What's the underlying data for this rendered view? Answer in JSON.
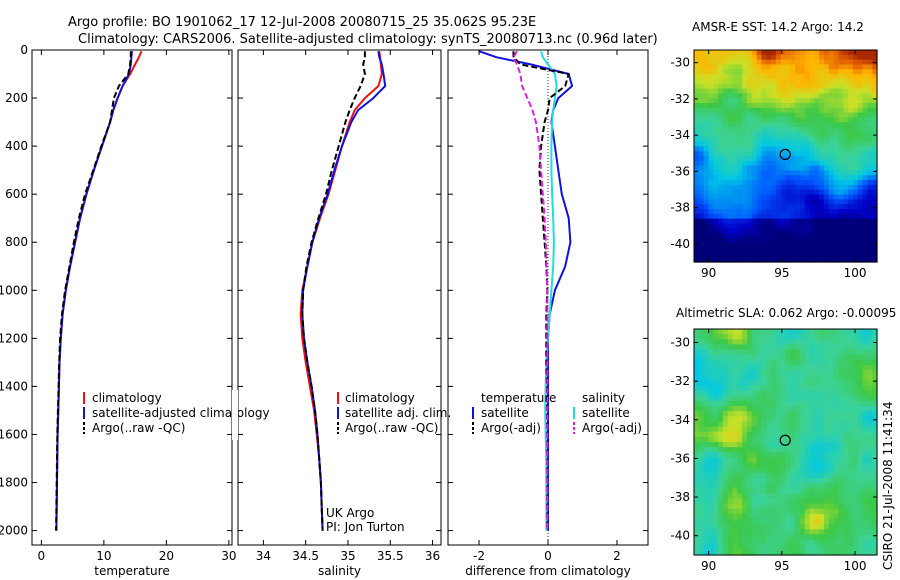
{
  "header": {
    "line1": "Argo profile: BO 1901062_17 12-Jul-2008 20080715_25 35.062S 95.23E",
    "line2": "Climatology: CARS2006. Satellite-adjusted climatology: synTS_20080713.nc (0.96d later)"
  },
  "side_stamp": "CSIRO 21-Jul-2008 11:41:34",
  "credits": {
    "line1": "UK Argo",
    "line2": "PI: Jon Turton"
  },
  "colors": {
    "red": "#ee1111",
    "blue": "#1111dd",
    "black": "#000000",
    "cyan": "#22dddd",
    "magenta": "#dd22dd"
  },
  "chart_data": [
    {
      "type": "line",
      "name": "temperature-panel",
      "xlabel": "temperature",
      "xlim": [
        -1.5,
        30.5
      ],
      "xticks": [
        0,
        10,
        20,
        30
      ],
      "xtick_labels": [
        "0",
        "10",
        "20",
        "30"
      ],
      "ylim": [
        2060,
        0
      ],
      "yticks": [
        0,
        200,
        400,
        600,
        800,
        1000,
        1200,
        1400,
        1600,
        1800,
        2000
      ],
      "ytick_labels": [
        "0",
        "200",
        "400",
        "600",
        "800",
        "1000",
        "1200",
        "1400",
        "1600",
        "1800",
        "2000"
      ],
      "depth": [
        5,
        30,
        60,
        100,
        150,
        200,
        250,
        300,
        400,
        500,
        600,
        700,
        800,
        900,
        1000,
        1100,
        1200,
        1300,
        1400,
        1500,
        1600,
        1700,
        1800,
        1900,
        2000
      ],
      "series": [
        {
          "name": "climatology",
          "color": "red",
          "dash": "",
          "values": [
            16.0,
            15.6,
            15.0,
            14.2,
            13.0,
            12.2,
            11.5,
            11.0,
            9.7,
            8.4,
            7.2,
            6.2,
            5.4,
            4.6,
            3.9,
            3.4,
            3.1,
            2.9,
            2.8,
            2.7,
            2.6,
            2.55,
            2.5,
            2.45,
            2.4
          ]
        },
        {
          "name": "satellite-adjusted climatology",
          "color": "blue",
          "dash": "",
          "values": [
            14.5,
            14.4,
            14.3,
            14.0,
            13.0,
            12.2,
            11.5,
            11.0,
            9.7,
            8.4,
            7.2,
            6.2,
            5.4,
            4.6,
            3.9,
            3.4,
            3.1,
            2.9,
            2.8,
            2.7,
            2.6,
            2.55,
            2.5,
            2.45,
            2.4
          ]
        },
        {
          "name": "Argo(..raw -QC)",
          "color": "black",
          "dash": "6,3",
          "values": [
            14.3,
            14.3,
            14.2,
            13.9,
            12.4,
            11.6,
            11.3,
            11.0,
            9.6,
            8.3,
            7.0,
            6.0,
            5.2,
            4.5,
            3.8,
            3.3,
            3.0,
            2.85,
            2.75,
            2.65,
            2.55,
            2.5,
            2.45,
            2.4,
            2.35
          ]
        }
      ],
      "legend": [
        "climatology",
        "satellite-adjusted climatology",
        "Argo(..raw -QC)"
      ]
    },
    {
      "type": "line",
      "name": "salinity-panel",
      "xlabel": "salinity",
      "xlim": [
        33.7,
        36.1
      ],
      "xticks": [
        34,
        34.5,
        35,
        35.5,
        36
      ],
      "xtick_labels": [
        "34",
        "34.5",
        "35",
        "35.5",
        "36"
      ],
      "ylim": [
        2060,
        0
      ],
      "depth": [
        5,
        30,
        60,
        100,
        150,
        200,
        250,
        300,
        400,
        500,
        600,
        700,
        800,
        900,
        1000,
        1100,
        1200,
        1300,
        1400,
        1500,
        1600,
        1700,
        1800,
        1900,
        2000
      ],
      "series": [
        {
          "name": "climatology",
          "color": "red",
          "dash": "",
          "values": [
            35.37,
            35.38,
            35.39,
            35.4,
            35.36,
            35.2,
            35.08,
            35.02,
            34.93,
            34.85,
            34.77,
            34.67,
            34.58,
            34.52,
            34.46,
            34.44,
            34.46,
            34.5,
            34.55,
            34.6,
            34.63,
            34.66,
            34.68,
            34.69,
            34.7
          ]
        },
        {
          "name": "satellite adj. clim.",
          "color": "blue",
          "dash": "",
          "values": [
            35.36,
            35.37,
            35.4,
            35.42,
            35.44,
            35.3,
            35.12,
            35.04,
            34.93,
            34.84,
            34.76,
            34.66,
            34.58,
            34.52,
            34.47,
            34.46,
            34.48,
            34.52,
            34.57,
            34.61,
            34.64,
            34.66,
            34.68,
            34.69,
            34.7
          ]
        },
        {
          "name": "Argo(..raw -QC)",
          "color": "black",
          "dash": "6,3",
          "values": [
            35.2,
            35.2,
            35.18,
            35.2,
            35.15,
            35.08,
            35.02,
            34.97,
            34.89,
            34.81,
            34.74,
            34.65,
            34.57,
            34.51,
            34.47,
            34.46,
            34.48,
            34.52,
            34.57,
            34.61,
            34.64,
            34.66,
            34.68,
            34.69,
            34.7
          ]
        }
      ],
      "legend": [
        "climatology",
        "satellite adj. clim.",
        "Argo(..raw -QC)"
      ]
    },
    {
      "type": "line",
      "name": "difference-panel",
      "xlabel": "difference from climatology",
      "xlim": [
        -2.9,
        2.9
      ],
      "xticks": [
        -2,
        0,
        2
      ],
      "xtick_labels": [
        "-2",
        "0",
        "2"
      ],
      "ylim": [
        2060,
        0
      ],
      "depth": [
        5,
        30,
        60,
        100,
        150,
        200,
        250,
        300,
        400,
        500,
        600,
        700,
        800,
        900,
        1000,
        1100,
        1200,
        1300,
        1400,
        1500,
        1600,
        1700,
        1800,
        1900,
        2000
      ],
      "series": [
        {
          "name": "temperature satellite",
          "color": "blue",
          "dash": "",
          "values": [
            -2.0,
            -1.5,
            -0.5,
            0.6,
            0.7,
            0.3,
            0.15,
            0.1,
            0.2,
            0.3,
            0.4,
            0.6,
            0.65,
            0.5,
            0.2,
            0.05,
            0.0,
            0.0,
            0.0,
            0.0,
            0.0,
            0.0,
            0.0,
            0.0,
            0.0
          ]
        },
        {
          "name": "salinity satellite",
          "color": "cyan",
          "dash": "",
          "values": [
            -0.2,
            -0.15,
            0.0,
            0.2,
            0.25,
            0.2,
            0.15,
            0.12,
            0.1,
            0.1,
            0.12,
            0.15,
            0.17,
            0.15,
            0.1,
            0.05,
            0.0,
            -0.05,
            -0.07,
            -0.08,
            -0.07,
            -0.05,
            -0.05,
            -0.05,
            -0.05
          ]
        },
        {
          "name": "temperature Argo(-adj)",
          "color": "black",
          "dash": "6,3",
          "values": [
            -1.0,
            -1.0,
            -0.8,
            0.6,
            0.5,
            0.05,
            0.0,
            -0.1,
            -0.2,
            -0.25,
            -0.2,
            -0.15,
            -0.1,
            -0.05,
            -0.02,
            -0.05,
            -0.05,
            -0.05,
            -0.03,
            -0.03,
            -0.02,
            -0.02,
            -0.02,
            -0.02,
            -0.02
          ]
        },
        {
          "name": "salinity Argo(-adj)",
          "color": "magenta",
          "dash": "6,3",
          "values": [
            -0.9,
            -1.0,
            -0.9,
            -0.8,
            -0.75,
            -0.6,
            -0.45,
            -0.35,
            -0.25,
            -0.2,
            -0.15,
            -0.1,
            -0.06,
            -0.04,
            -0.02,
            -0.02,
            -0.02,
            -0.02,
            -0.02,
            -0.02,
            -0.02,
            -0.02,
            -0.02,
            -0.02,
            -0.02
          ]
        }
      ],
      "legend_headers": [
        "temperature",
        "salinity"
      ],
      "legend": [
        "satellite",
        "Argo(-adj)",
        "satellite",
        "Argo(-adj)"
      ]
    },
    {
      "type": "heatmap",
      "name": "sst-map",
      "title": "AMSR-E SST: 14.2 Argo: 14.2",
      "xlim": [
        89,
        101.5
      ],
      "ylim": [
        -41,
        -29.3
      ],
      "xticks": [
        90,
        95,
        100
      ],
      "xtick_labels": [
        "90",
        "95",
        "100"
      ],
      "yticks": [
        -30,
        -32,
        -34,
        -36,
        -38,
        -40
      ],
      "ytick_labels": [
        "-30",
        "-32",
        "-34",
        "-36",
        "-38",
        "-40"
      ],
      "marker": {
        "lon": 95.23,
        "lat": -35.06
      }
    },
    {
      "type": "heatmap",
      "name": "sla-map",
      "title": "Altimetric SLA: 0.062 Argo: -0.00095",
      "xlim": [
        89,
        101.5
      ],
      "ylim": [
        -41,
        -29.3
      ],
      "xticks": [
        90,
        95,
        100
      ],
      "xtick_labels": [
        "90",
        "95",
        "100"
      ],
      "yticks": [
        -30,
        -32,
        -34,
        -36,
        -38,
        -40
      ],
      "ytick_labels": [
        "-30",
        "-32",
        "-34",
        "-36",
        "-38",
        "-40"
      ],
      "marker": {
        "lon": 95.23,
        "lat": -35.06
      }
    }
  ]
}
